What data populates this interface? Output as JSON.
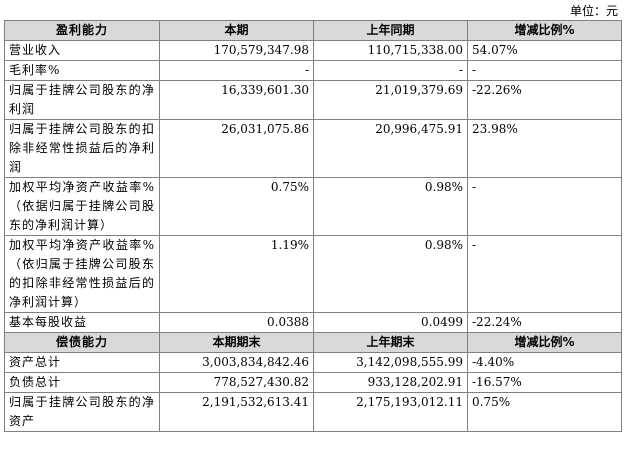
{
  "unit": "单位：元",
  "sections": [
    {
      "header": [
        "盈利能力",
        "本期",
        "上年同期",
        "增减比例%"
      ],
      "rows": [
        [
          "营业收入",
          "170,579,347.98",
          "110,715,338.00",
          "54.07%"
        ],
        [
          "毛利率%",
          "-",
          "-",
          "-"
        ],
        [
          "归属于挂牌公司股东的净利润",
          "16,339,601.30",
          "21,019,379.69",
          "-22.26%"
        ],
        [
          "归属于挂牌公司股东的扣除非经常性损益后的净利润",
          "26,031,075.86",
          "20,996,475.91",
          "23.98%"
        ],
        [
          "加权平均净资产收益率%（依据归属于挂牌公司股东的净利润计算）",
          "0.75%",
          "0.98%",
          "-"
        ],
        [
          "加权平均净资产收益率%（依归属于挂牌公司股东的扣除非经常性损益后的净利润计算）",
          "1.19%",
          "0.98%",
          "-"
        ],
        [
          "基本每股收益",
          "0.0388",
          "0.0499",
          "-22.24%"
        ]
      ]
    },
    {
      "header": [
        "偿债能力",
        "本期期末",
        "上年期末",
        "增减比例%"
      ],
      "rows": [
        [
          "资产总计",
          "3,003,834,842.46",
          "3,142,098,555.99",
          "-4.40%"
        ],
        [
          "负债总计",
          "778,527,430.82",
          "933,128,202.91",
          "-16.57%"
        ],
        [
          "归属于挂牌公司股东的净资产",
          "2,191,532,613.41",
          "2,175,193,012.11",
          "0.75%"
        ]
      ]
    }
  ]
}
